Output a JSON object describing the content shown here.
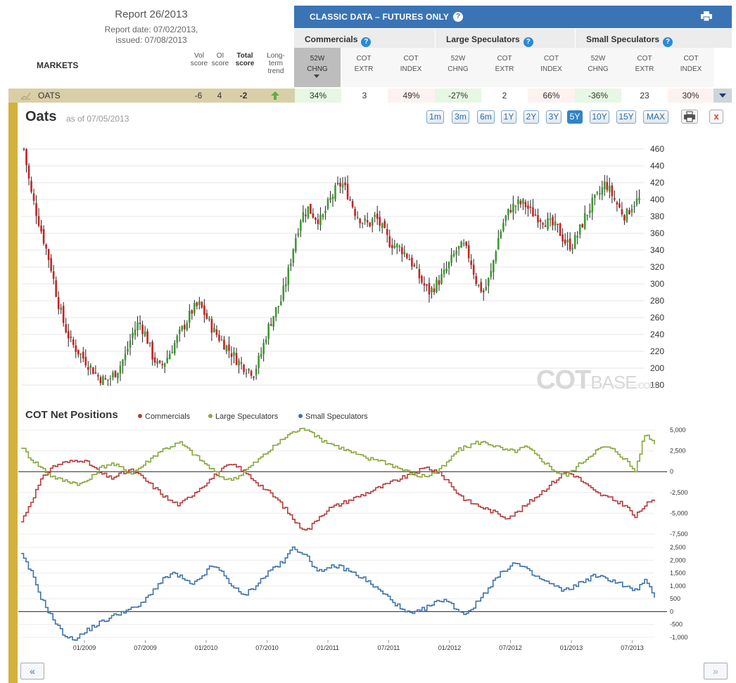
{
  "report": {
    "title": "Report 26/2013",
    "date_line": "Report date: 07/02/2013,",
    "issued_line": "issued: 07/08/2013"
  },
  "markets_label": "MARKETS",
  "score_headers": {
    "vol": [
      "Vol",
      "score"
    ],
    "oi": [
      "OI",
      "score"
    ],
    "total": [
      "Total",
      "score"
    ],
    "trend": [
      "Long-",
      "term",
      "trend"
    ]
  },
  "classic": {
    "title": "CLASSIC DATA – FUTURES ONLY",
    "help_icon": "question-icon",
    "print_icon": "printer-icon"
  },
  "groups": [
    {
      "name": "Commercials",
      "cols": [
        [
          "52W",
          "CHNG"
        ],
        [
          "COT",
          "EXTR"
        ],
        [
          "COT",
          "INDEX"
        ]
      ]
    },
    {
      "name": "Large Speculators",
      "cols": [
        [
          "52W",
          "CHNG"
        ],
        [
          "COT",
          "EXTR"
        ],
        [
          "COT",
          "INDEX"
        ]
      ]
    },
    {
      "name": "Small Speculators",
      "cols": [
        [
          "52W",
          "CHNG"
        ],
        [
          "COT",
          "EXTR"
        ],
        [
          "COT",
          "INDEX"
        ]
      ]
    }
  ],
  "row": {
    "market": "OATS",
    "vol_score": "-6",
    "oi_score": "4",
    "total_score": "-2",
    "trend_icon": "arrow-up-icon",
    "commercials": [
      "34%",
      "3",
      "49%"
    ],
    "large_specs": [
      "-27%",
      "2",
      "66%"
    ],
    "small_specs": [
      "-36%",
      "23",
      "30%"
    ]
  },
  "chart_header": {
    "title": "Oats",
    "as_of": "as of 07/05/2013",
    "ranges": [
      "1m",
      "3m",
      "6m",
      "1Y",
      "2Y",
      "3Y",
      "5Y",
      "10Y",
      "15Y",
      "MAX"
    ],
    "active_range": "5Y",
    "close_label": "x"
  },
  "watermark": {
    "main": "COT",
    "rest": "BASE",
    "suffix": ".COM"
  },
  "cot_section": {
    "title": "COT Net Positions",
    "legend": [
      {
        "name": "Commercials",
        "color": "#b83b3b"
      },
      {
        "name": "Large Speculators",
        "color": "#86a83b"
      },
      {
        "name": "Small Speculators",
        "color": "#3d73ad"
      }
    ]
  },
  "nav": {
    "prev": "«",
    "next": "»"
  },
  "chart_data": [
    {
      "type": "candlestick",
      "title": "Oats",
      "ylim": [
        170,
        470
      ],
      "y_ticks": [
        180,
        200,
        220,
        240,
        260,
        280,
        300,
        320,
        340,
        360,
        380,
        400,
        420,
        440,
        460
      ],
      "x_range": [
        "07/2008",
        "07/2013"
      ],
      "approx_weekly_close": [
        460,
        410,
        380,
        350,
        320,
        280,
        250,
        230,
        220,
        210,
        200,
        190,
        185,
        190,
        200,
        215,
        240,
        255,
        240,
        215,
        200,
        210,
        225,
        240,
        255,
        270,
        275,
        260,
        245,
        235,
        225,
        215,
        205,
        200,
        195,
        215,
        245,
        265,
        280,
        310,
        350,
        380,
        390,
        380,
        375,
        395,
        410,
        420,
        405,
        385,
        375,
        370,
        380,
        365,
        350,
        345,
        340,
        330,
        315,
        300,
        290,
        300,
        310,
        325,
        340,
        345,
        330,
        300,
        290,
        310,
        350,
        375,
        390,
        395,
        395,
        385,
        380,
        375,
        370,
        365,
        350,
        345,
        360,
        380,
        395,
        405,
        420,
        405,
        390,
        380,
        395,
        400
      ]
    },
    {
      "type": "line",
      "title": "COT Net Positions",
      "ylim": [
        -7500,
        5000
      ],
      "y_ticks": [
        5000,
        2500,
        0,
        -2500,
        -5000,
        -7500
      ],
      "series": [
        {
          "name": "Commercials",
          "color": "#b83b3b",
          "values": [
            -6000,
            -3500,
            -1000,
            500,
            1000,
            1200,
            1500,
            800,
            -200,
            -800,
            -300,
            200,
            -500,
            -1500,
            -2500,
            -3500,
            -4000,
            -3000,
            -2000,
            -1000,
            0,
            800,
            500,
            -500,
            -1500,
            -2500,
            -3500,
            -5000,
            -6500,
            -7000,
            -5500,
            -4500,
            -4000,
            -3500,
            -3000,
            -2500,
            -2000,
            -1500,
            -1000,
            -500,
            0,
            500,
            0,
            -1000,
            -2500,
            -3500,
            -4000,
            -4500,
            -5000,
            -5500,
            -5000,
            -4000,
            -3000,
            -2000,
            -1000,
            0,
            -500,
            -1500,
            -2500,
            -3000,
            -3500,
            -4000,
            -5500,
            -4000,
            -3500
          ]
        },
        {
          "name": "Large Speculators",
          "color": "#86a83b",
          "values": [
            3000,
            1500,
            500,
            -500,
            -1000,
            -1200,
            -1500,
            -800,
            500,
            1000,
            500,
            -200,
            500,
            1500,
            2500,
            3000,
            3500,
            2500,
            1500,
            500,
            -500,
            -1000,
            -500,
            500,
            1500,
            2500,
            3500,
            4500,
            5000,
            5200,
            4000,
            3500,
            3000,
            2500,
            2000,
            1500,
            1500,
            1000,
            500,
            0,
            -500,
            -500,
            0,
            1000,
            2500,
            3000,
            3500,
            3500,
            3000,
            2500,
            2500,
            3000,
            2000,
            1000,
            0,
            -500,
            500,
            1500,
            2500,
            3000,
            2500,
            1500,
            0,
            4500,
            3500
          ]
        }
      ]
    },
    {
      "type": "line",
      "ylim": [
        -1000,
        2500
      ],
      "y_ticks": [
        2500,
        2000,
        1500,
        1000,
        500,
        0,
        -500,
        -1000
      ],
      "x_ticks": [
        "01/2009",
        "07/2009",
        "01/2010",
        "07/2010",
        "01/2011",
        "07/2011",
        "01/2012",
        "07/2012",
        "01/2013",
        "07/2013"
      ],
      "series": [
        {
          "name": "Small Speculators",
          "color": "#3d73ad",
          "values": [
            2200,
            1500,
            500,
            -200,
            -800,
            -1100,
            -900,
            -600,
            -400,
            -200,
            0,
            100,
            300,
            800,
            1200,
            1500,
            1300,
            1000,
            1400,
            1800,
            1500,
            1000,
            600,
            900,
            1300,
            1700,
            1900,
            2500,
            2300,
            1800,
            1500,
            1800,
            1700,
            1500,
            1300,
            1000,
            700,
            400,
            0,
            -100,
            100,
            300,
            500,
            200,
            -100,
            200,
            700,
            1200,
            1600,
            1900,
            1700,
            1400,
            1200,
            1000,
            800,
            1000,
            1200,
            1400,
            1300,
            1200,
            1000,
            800,
            1200,
            600
          ]
        }
      ]
    }
  ]
}
